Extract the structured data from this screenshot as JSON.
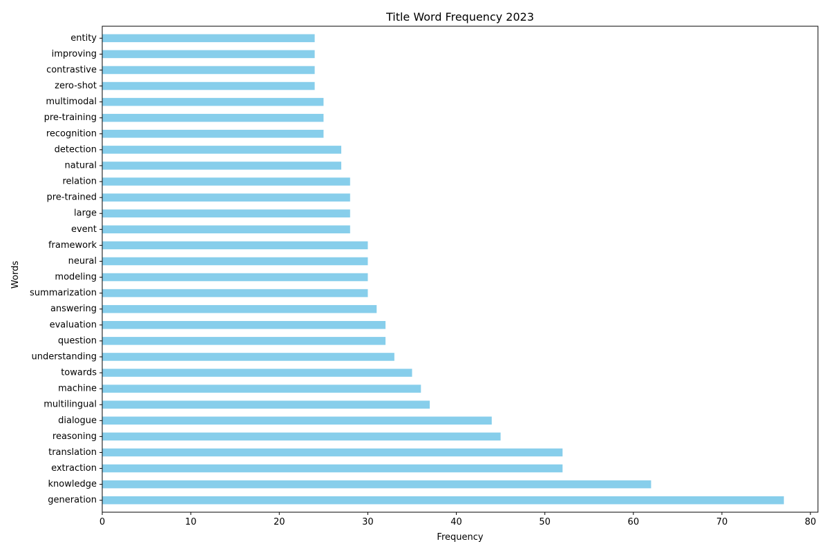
{
  "chart_data": {
    "type": "bar",
    "orientation": "horizontal",
    "title": "Title Word Frequency 2023",
    "xlabel": "Frequency",
    "ylabel": "Words",
    "xlim": [
      0,
      80.85
    ],
    "xticks": [
      0,
      10,
      20,
      30,
      40,
      50,
      60,
      70,
      80
    ],
    "grid": false,
    "legend": "none",
    "bar_color": "#87ceeb",
    "categories": [
      "generation",
      "knowledge",
      "extraction",
      "translation",
      "reasoning",
      "dialogue",
      "multilingual",
      "machine",
      "towards",
      "understanding",
      "question",
      "evaluation",
      "answering",
      "summarization",
      "modeling",
      "neural",
      "framework",
      "event",
      "large",
      "pre-trained",
      "relation",
      "natural",
      "detection",
      "recognition",
      "pre-training",
      "multimodal",
      "zero-shot",
      "contrastive",
      "improving",
      "entity"
    ],
    "values": [
      77,
      62,
      52,
      52,
      45,
      44,
      37,
      36,
      35,
      33,
      32,
      32,
      31,
      30,
      30,
      30,
      30,
      28,
      28,
      28,
      28,
      27,
      27,
      25,
      25,
      25,
      24,
      24,
      24,
      24
    ]
  }
}
